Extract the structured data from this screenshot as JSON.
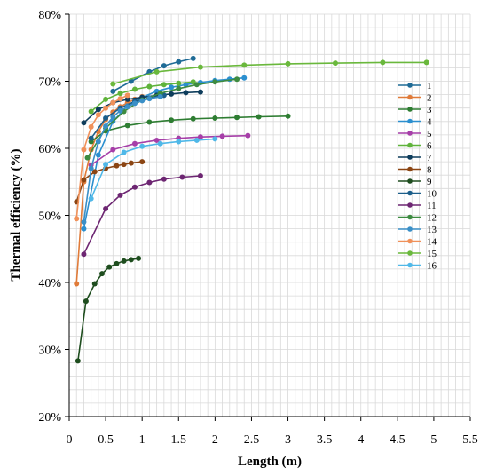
{
  "chart_data": {
    "type": "line",
    "title": "",
    "xlabel": "Length (m)",
    "ylabel": "Thermal efficiency (%)",
    "xlim": [
      0,
      5.5
    ],
    "ylim": [
      20,
      80
    ],
    "xticks": [
      "0",
      "0.5",
      "1",
      "1.5",
      "2",
      "2.5",
      "3",
      "3.5",
      "4",
      "4.5",
      "5",
      "5.5"
    ],
    "yticks": [
      "20%",
      "30%",
      "40%",
      "50%",
      "60%",
      "70%",
      "80%"
    ],
    "grid": true,
    "legend_position": "right",
    "series": [
      {
        "name": "1",
        "color": "#1f6b96",
        "x": [
          0.6,
          0.85,
          1.1,
          1.3,
          1.5,
          1.7
        ],
        "y": [
          68.5,
          70.0,
          71.4,
          72.3,
          72.9,
          73.4
        ]
      },
      {
        "name": "2",
        "color": "#e07b39",
        "x": [
          0.1,
          0.2,
          0.3,
          0.4,
          0.5,
          0.6,
          0.7,
          0.8,
          0.9,
          1.0
        ],
        "y": [
          39.8,
          55.0,
          59.8,
          62.5,
          64.3,
          65.4,
          66.2,
          66.8,
          67.3,
          67.7
        ]
      },
      {
        "name": "3",
        "color": "#2e7d32",
        "x": [
          0.3,
          0.5,
          0.8,
          1.1,
          1.4,
          1.7,
          2.0,
          2.3,
          2.6,
          3.0
        ],
        "y": [
          61.0,
          62.6,
          63.4,
          63.9,
          64.2,
          64.4,
          64.5,
          64.6,
          64.7,
          64.8
        ]
      },
      {
        "name": "4",
        "color": "#2b8fcf",
        "x": [
          0.2,
          0.4,
          0.6,
          0.8,
          1.0,
          1.2,
          1.4,
          1.6,
          1.8,
          2.0,
          2.2,
          2.4
        ],
        "y": [
          48.0,
          59.0,
          64.0,
          66.3,
          67.6,
          68.5,
          69.1,
          69.5,
          69.8,
          70.1,
          70.3,
          70.5
        ]
      },
      {
        "name": "5",
        "color": "#a63fa8",
        "x": [
          0.3,
          0.6,
          0.9,
          1.2,
          1.5,
          1.8,
          2.1,
          2.45
        ],
        "y": [
          57.5,
          59.8,
          60.7,
          61.2,
          61.5,
          61.7,
          61.8,
          61.9
        ]
      },
      {
        "name": "6",
        "color": "#5fb33a",
        "x": [
          0.3,
          0.5,
          0.7,
          0.9,
          1.1,
          1.3,
          1.5,
          1.7
        ],
        "y": [
          65.5,
          67.3,
          68.2,
          68.8,
          69.2,
          69.5,
          69.7,
          69.9
        ]
      },
      {
        "name": "7",
        "color": "#0e3d5c",
        "x": [
          0.2,
          0.4,
          0.6,
          0.8,
          1.0,
          1.2,
          1.4,
          1.6,
          1.8
        ],
        "y": [
          63.8,
          65.8,
          66.8,
          67.3,
          67.6,
          67.9,
          68.1,
          68.3,
          68.4
        ]
      },
      {
        "name": "8",
        "color": "#8b4513",
        "x": [
          0.1,
          0.2,
          0.35,
          0.5,
          0.65,
          0.75,
          0.85,
          1.0
        ],
        "y": [
          52.0,
          55.3,
          56.5,
          57.0,
          57.4,
          57.6,
          57.8,
          58.0
        ]
      },
      {
        "name": "9",
        "color": "#1e4d1e",
        "x": [
          0.12,
          0.23,
          0.35,
          0.45,
          0.55,
          0.65,
          0.75,
          0.85,
          0.95
        ],
        "y": [
          28.3,
          37.2,
          39.8,
          41.3,
          42.3,
          42.8,
          43.2,
          43.4,
          43.6
        ]
      },
      {
        "name": "10",
        "color": "#1b5e8a",
        "x": [
          0.3,
          0.5,
          0.7,
          0.9,
          1.1,
          1.3
        ],
        "y": [
          61.5,
          64.5,
          66.0,
          67.0,
          67.5,
          67.9
        ]
      },
      {
        "name": "11",
        "color": "#6d2672",
        "x": [
          0.2,
          0.5,
          0.7,
          0.9,
          1.1,
          1.3,
          1.55,
          1.8
        ],
        "y": [
          44.2,
          51.0,
          53.0,
          54.2,
          54.9,
          55.4,
          55.7,
          55.9
        ]
      },
      {
        "name": "12",
        "color": "#3d8b40",
        "x": [
          0.25,
          0.5,
          0.75,
          1.0,
          1.25,
          1.5,
          1.75,
          2.0,
          2.3
        ],
        "y": [
          58.6,
          63.0,
          65.5,
          67.2,
          68.2,
          68.9,
          69.5,
          69.9,
          70.3
        ]
      },
      {
        "name": "13",
        "color": "#3a8fc7",
        "x": [
          0.2,
          0.3,
          0.4,
          0.5,
          0.6,
          0.7,
          0.8,
          0.9,
          1.0,
          1.1,
          1.25
        ],
        "y": [
          49.0,
          57.0,
          61.0,
          63.3,
          64.7,
          65.6,
          66.2,
          66.7,
          67.1,
          67.4,
          67.7
        ]
      },
      {
        "name": "14",
        "color": "#f0915a",
        "x": [
          0.1,
          0.2,
          0.3,
          0.4,
          0.5,
          0.6,
          0.7,
          0.8
        ],
        "y": [
          49.5,
          59.8,
          63.2,
          65.0,
          66.0,
          66.8,
          67.4,
          67.9
        ]
      },
      {
        "name": "15",
        "color": "#6ab83c",
        "x": [
          0.6,
          1.2,
          1.8,
          2.4,
          3.0,
          3.65,
          4.3,
          4.9
        ],
        "y": [
          69.6,
          71.4,
          72.1,
          72.4,
          72.6,
          72.7,
          72.8,
          72.8
        ]
      },
      {
        "name": "16",
        "color": "#4fb8e8",
        "x": [
          0.3,
          0.5,
          0.75,
          1.0,
          1.25,
          1.5,
          1.75,
          2.0
        ],
        "y": [
          52.5,
          57.6,
          59.4,
          60.3,
          60.7,
          61.0,
          61.2,
          61.4
        ]
      }
    ]
  }
}
